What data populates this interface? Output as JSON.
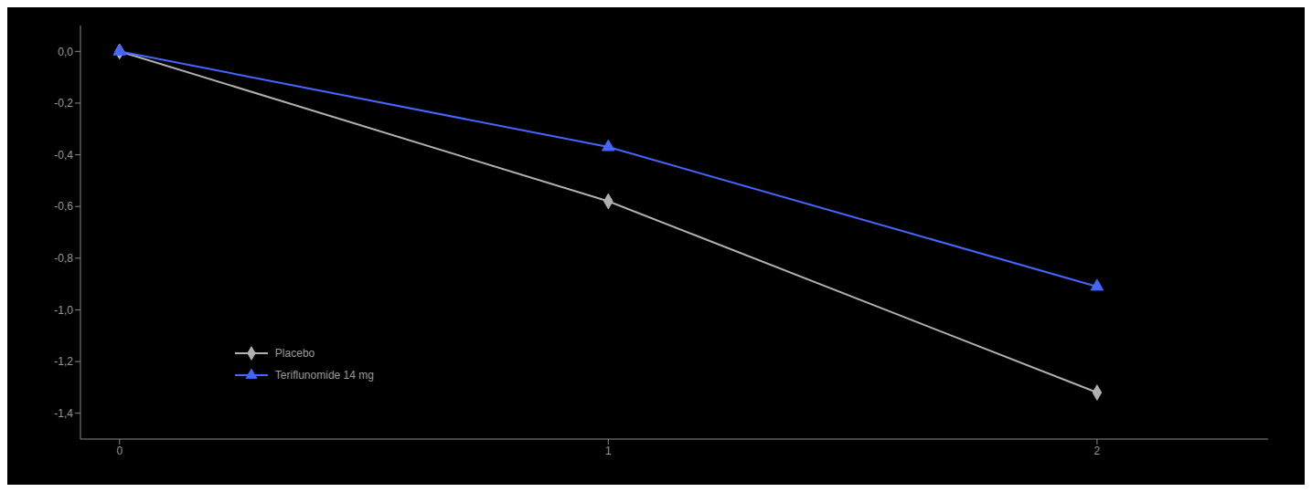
{
  "chart_data": {
    "type": "line",
    "x": [
      0,
      1,
      2
    ],
    "series": [
      {
        "name": "Placebo",
        "color": "#b0b0b0",
        "marker": "diamond",
        "values": [
          0.0,
          -0.58,
          -1.32
        ]
      },
      {
        "name": "Teriflunomide 14 mg",
        "color": "#4466ff",
        "marker": "triangle",
        "values": [
          0.0,
          -0.37,
          -0.91
        ]
      }
    ],
    "xlim": [
      -0.08,
      2.35
    ],
    "xticks": [
      0,
      1,
      2
    ],
    "ylim": [
      -1.5,
      0.1
    ],
    "yticks": [
      {
        "value": 0.0,
        "label": "0,0"
      },
      {
        "value": -0.2,
        "label": "-0,2"
      },
      {
        "value": -0.4,
        "label": "-0,4"
      },
      {
        "value": -0.6,
        "label": "-0,6"
      },
      {
        "value": -0.8,
        "label": "-0,8"
      },
      {
        "value": -1.0,
        "label": "-1,0"
      },
      {
        "value": -1.2,
        "label": "-1,2"
      },
      {
        "value": -1.4,
        "label": "-1,4"
      }
    ],
    "grid": false,
    "legend": "lower left"
  }
}
